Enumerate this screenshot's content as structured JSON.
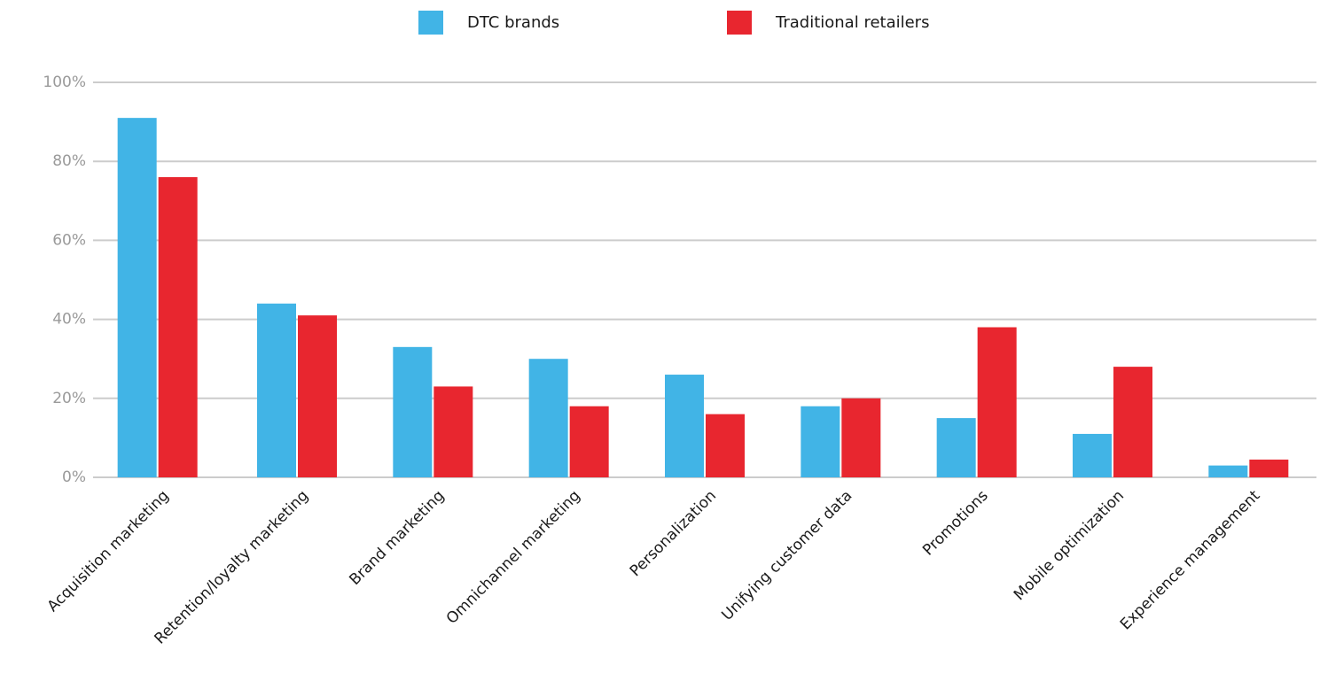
{
  "chart_data": {
    "type": "bar",
    "categories": [
      "Acquisition marketing",
      "Retention/loyalty marketing",
      "Brand marketing",
      "Omnichannel marketing",
      "Personalization",
      "Unifying customer data",
      "Promotions",
      "Mobile optimization",
      "Experience management"
    ],
    "series": [
      {
        "name": "DTC brands",
        "color": "#41b4e6",
        "values": [
          91,
          44,
          33,
          30,
          26,
          18,
          15,
          11,
          3
        ]
      },
      {
        "name": "Traditional retailers",
        "color": "#e8262f",
        "values": [
          76,
          41,
          23,
          18,
          16,
          20,
          38,
          28,
          4.5
        ]
      }
    ],
    "ylim": [
      0,
      100
    ],
    "yticks": [
      {
        "value": 0,
        "label": "0%"
      },
      {
        "value": 20,
        "label": "20%"
      },
      {
        "value": 40,
        "label": "40%"
      },
      {
        "value": 60,
        "label": "60%"
      },
      {
        "value": 80,
        "label": "80%"
      },
      {
        "value": 100,
        "label": "100%"
      }
    ],
    "grid": true,
    "legend": "top"
  }
}
